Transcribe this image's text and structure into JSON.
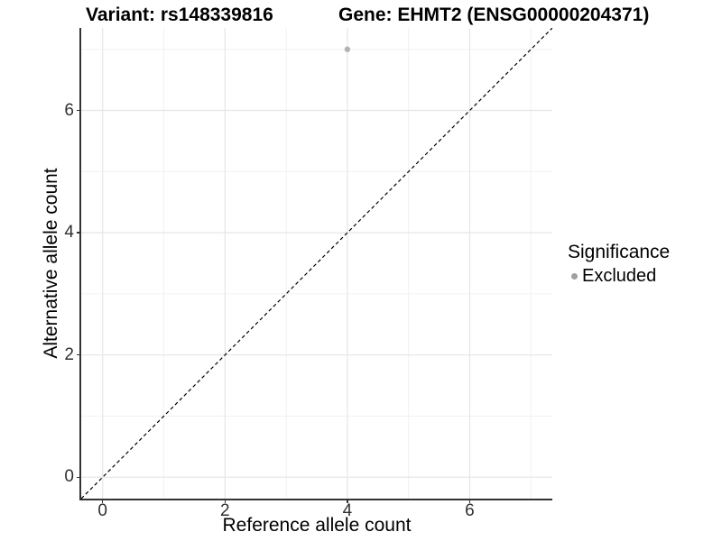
{
  "chart_data": {
    "type": "scatter",
    "title_left": "Variant: rs148339816",
    "title_right": "Gene: EHMT2 (ENSG00000204371)",
    "xlabel": "Reference allele count",
    "ylabel": "Alternative allele count",
    "xlim": [
      0,
      7
    ],
    "ylim": [
      0,
      7
    ],
    "expansion": 0.05,
    "x_major_ticks": [
      0,
      2,
      4,
      6
    ],
    "y_major_ticks": [
      0,
      2,
      4,
      6
    ],
    "x_minor_gridlines": [
      1,
      3,
      5,
      7
    ],
    "y_minor_gridlines": [
      1,
      3,
      5,
      7
    ],
    "grid": true,
    "series": [
      {
        "name": "Excluded",
        "color": "#b3b3b3",
        "points": [
          {
            "x": 4,
            "y": 7
          }
        ]
      }
    ],
    "reference_line": {
      "type": "identity",
      "slope": 1,
      "intercept": 0,
      "style": "dashed",
      "color": "#000000"
    },
    "legend": {
      "title": "Significance",
      "position": "right",
      "entries": [
        {
          "label": "Excluded",
          "color": "#a0a0a0"
        }
      ]
    }
  },
  "colors": {
    "background": "#ffffff",
    "grid_major": "#e6e6e6",
    "grid_minor": "#f1f1f1",
    "axis_line": "#333333",
    "tick_label": "#303030",
    "title_text": "#000000"
  }
}
